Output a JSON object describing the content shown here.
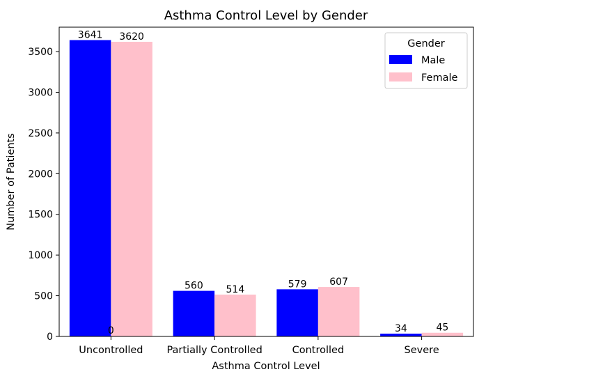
{
  "chart_data": {
    "type": "bar",
    "title": "Asthma Control Level by Gender",
    "xlabel": "Asthma Control Level",
    "ylabel": "Number of Patients",
    "categories": [
      "Uncontrolled",
      "Partially Controlled",
      "Controlled",
      "Severe"
    ],
    "series": [
      {
        "name": "Male",
        "color": "#0000ff",
        "values": [
          3641,
          560,
          579,
          34
        ]
      },
      {
        "name": "Female",
        "color": "#ffc0cb",
        "values": [
          3620,
          514,
          607,
          45
        ]
      }
    ],
    "ylim": [
      0,
      3800
    ],
    "yticks": [
      0,
      500,
      1000,
      1500,
      2000,
      2500,
      3000,
      3500
    ],
    "grid": false,
    "legend": {
      "title": "Gender",
      "placement": "top-right"
    },
    "extra_annotation": "0"
  }
}
